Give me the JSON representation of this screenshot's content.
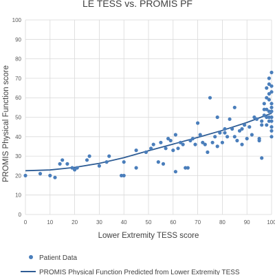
{
  "chart_data": {
    "type": "scatter",
    "title": "LE TESS vs. PROMIS PF",
    "xlabel": "Lower Extremity TESS score",
    "ylabel": "PROMIS Physical Function score",
    "xlim": [
      0,
      100
    ],
    "ylim": [
      0,
      100
    ],
    "xticks": [
      "0",
      "10",
      "20",
      "30",
      "40",
      "50",
      "60",
      "70",
      "80",
      "90",
      "100"
    ],
    "yticks": [
      "0",
      "10",
      "20",
      "30",
      "40",
      "50",
      "60",
      "70",
      "80",
      "90",
      "100"
    ],
    "grid": true,
    "legend_position": "bottom",
    "colors": {
      "points": "#4a7ebb",
      "line": "#2e5c94",
      "grid": "#d9d9d9",
      "text": "#404040"
    },
    "series": [
      {
        "name": "Patient Data",
        "kind": "scatter",
        "points": [
          [
            0,
            20
          ],
          [
            6,
            21
          ],
          [
            10,
            20
          ],
          [
            12,
            19
          ],
          [
            14,
            26
          ],
          [
            15,
            28
          ],
          [
            17,
            26
          ],
          [
            19,
            24
          ],
          [
            20,
            23
          ],
          [
            21,
            24
          ],
          [
            25,
            28
          ],
          [
            26,
            30
          ],
          [
            30,
            25
          ],
          [
            33,
            27
          ],
          [
            34,
            30
          ],
          [
            39,
            20
          ],
          [
            40,
            20
          ],
          [
            40,
            27
          ],
          [
            45,
            24
          ],
          [
            45,
            33
          ],
          [
            49,
            32
          ],
          [
            51,
            34
          ],
          [
            52,
            36
          ],
          [
            54,
            27
          ],
          [
            55,
            37
          ],
          [
            56,
            26
          ],
          [
            57,
            34
          ],
          [
            58,
            39
          ],
          [
            59,
            38
          ],
          [
            60,
            33
          ],
          [
            61,
            22
          ],
          [
            61,
            41
          ],
          [
            62,
            34
          ],
          [
            63,
            37
          ],
          [
            64,
            36
          ],
          [
            65,
            24
          ],
          [
            66,
            24
          ],
          [
            67,
            38
          ],
          [
            68,
            39
          ],
          [
            69,
            36
          ],
          [
            70,
            47
          ],
          [
            71,
            41
          ],
          [
            72,
            37
          ],
          [
            73,
            36
          ],
          [
            74,
            32
          ],
          [
            75,
            60
          ],
          [
            76,
            37
          ],
          [
            77,
            40
          ],
          [
            78,
            50
          ],
          [
            78,
            35
          ],
          [
            79,
            42
          ],
          [
            80,
            37
          ],
          [
            81,
            42
          ],
          [
            81,
            44
          ],
          [
            82,
            40
          ],
          [
            83,
            49
          ],
          [
            84,
            44
          ],
          [
            85,
            55
          ],
          [
            85,
            40
          ],
          [
            86,
            38
          ],
          [
            87,
            43
          ],
          [
            88,
            44
          ],
          [
            88,
            36
          ],
          [
            89,
            46
          ],
          [
            90,
            39
          ],
          [
            91,
            45
          ],
          [
            92,
            41
          ],
          [
            93,
            50
          ],
          [
            94,
            49
          ],
          [
            95,
            39
          ],
          [
            95,
            38
          ],
          [
            96,
            29
          ],
          [
            96,
            46
          ],
          [
            96,
            48
          ],
          [
            97,
            51
          ],
          [
            97,
            54
          ],
          [
            97,
            57
          ],
          [
            98,
            60
          ],
          [
            98,
            65
          ],
          [
            98,
            54
          ],
          [
            98,
            50
          ],
          [
            98,
            46
          ],
          [
            99,
            70
          ],
          [
            99,
            67
          ],
          [
            99,
            62
          ],
          [
            99,
            59
          ],
          [
            99,
            53
          ],
          [
            99,
            50
          ],
          [
            99,
            48
          ],
          [
            100,
            73
          ],
          [
            100,
            66
          ],
          [
            100,
            63
          ],
          [
            100,
            57
          ],
          [
            100,
            55
          ],
          [
            100,
            53
          ],
          [
            100,
            50
          ],
          [
            100,
            48
          ],
          [
            100,
            45
          ],
          [
            100,
            43
          ],
          [
            100,
            40
          ]
        ]
      },
      {
        "name": "PROMIS Physical Function Predicted from Lower Extremity TESS",
        "kind": "curve",
        "points": [
          [
            0,
            22.5
          ],
          [
            10,
            22.9
          ],
          [
            20,
            24.2
          ],
          [
            30,
            26.3
          ],
          [
            40,
            29.2
          ],
          [
            50,
            32.8
          ],
          [
            60,
            36.2
          ],
          [
            70,
            39.6
          ],
          [
            80,
            43.2
          ],
          [
            90,
            47.3
          ],
          [
            100,
            52.0
          ]
        ]
      }
    ]
  }
}
